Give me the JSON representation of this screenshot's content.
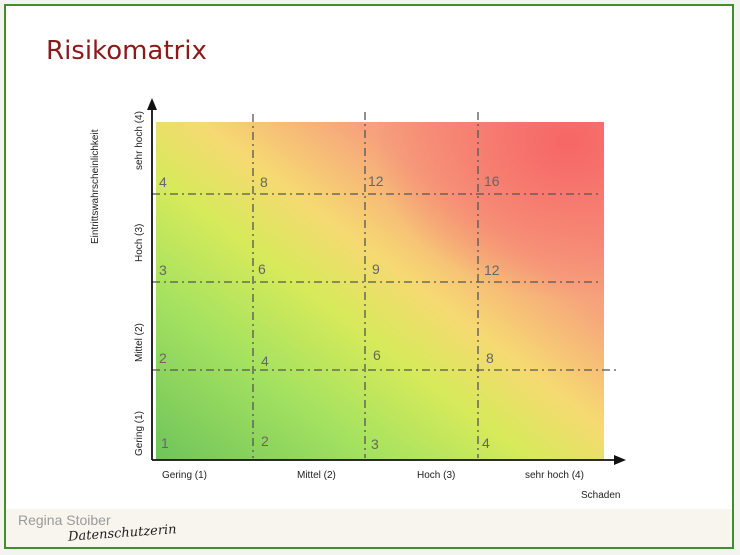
{
  "title": "Risikomatrix",
  "axes": {
    "y_title": "Eintrittswahrscheinlichkeit",
    "x_title": "Schaden",
    "y_levels": [
      "Gering (1)",
      "Mittel (2)",
      "Hoch (3)",
      "sehr hoch (4)"
    ],
    "x_levels": [
      "Gering (1)",
      "Mittel (2)",
      "Hoch (3)",
      "sehr hoch (4)"
    ]
  },
  "cells": {
    "row1": [
      "1",
      "2",
      "3",
      "4"
    ],
    "row2": [
      "2",
      "4",
      "6",
      "8"
    ],
    "row3": [
      "3",
      "6",
      "9",
      "12"
    ],
    "row4": [
      "4",
      "8",
      "12",
      "16"
    ]
  },
  "footer": {
    "author": "Regina Stoiber",
    "signature": "Datenschutzerin"
  },
  "colors": {
    "title": "#8b1a1a",
    "frame": "#3f8f2a",
    "low_risk": "#6fc45b",
    "medium_risk": "#f6d972",
    "high_risk": "#f57e7a"
  }
}
